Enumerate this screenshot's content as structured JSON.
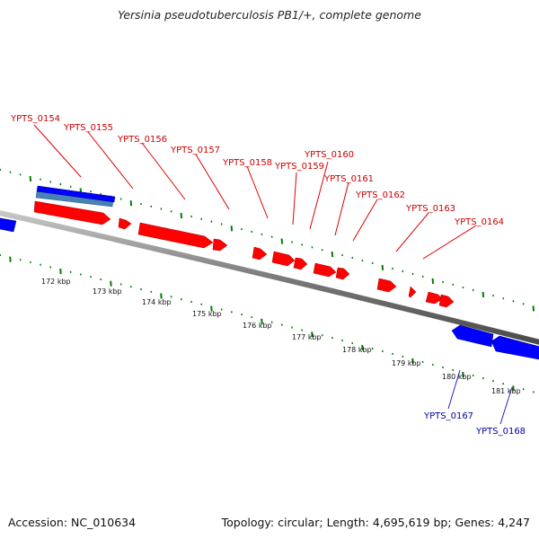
{
  "header": {
    "title": "Yersinia pseudotuberculosis PB1/+, complete genome"
  },
  "footer": {
    "accession": "Accession: NC_010634",
    "stats": "Topology: circular; Length: 4,695,619 bp; Genes: 4,247"
  },
  "colors": {
    "forward_gene": "#ff0000",
    "reverse_gene": "#0000ff",
    "rna_feature": "#4682b4",
    "backbone": "#808080",
    "tick_marks": "#008000",
    "forward_label": "#cc0000",
    "reverse_label": "#0000aa"
  },
  "scale_labels": [
    "172 kbp",
    "173 kbp",
    "174 kbp",
    "175 kbp",
    "176 kbp",
    "177 kbp",
    "178 kbp",
    "179 kbp",
    "180 kbp",
    "181 kbp"
  ],
  "forward_gene_labels": [
    "YPTS_0154",
    "YPTS_0155",
    "YPTS_0156",
    "YPTS_0157",
    "YPTS_0158",
    "YPTS_0159",
    "YPTS_0160",
    "YPTS_0161",
    "YPTS_0162",
    "YPTS_0163",
    "YPTS_0164"
  ],
  "reverse_gene_labels": [
    "YPTS_0167",
    "YPTS_0168"
  ]
}
